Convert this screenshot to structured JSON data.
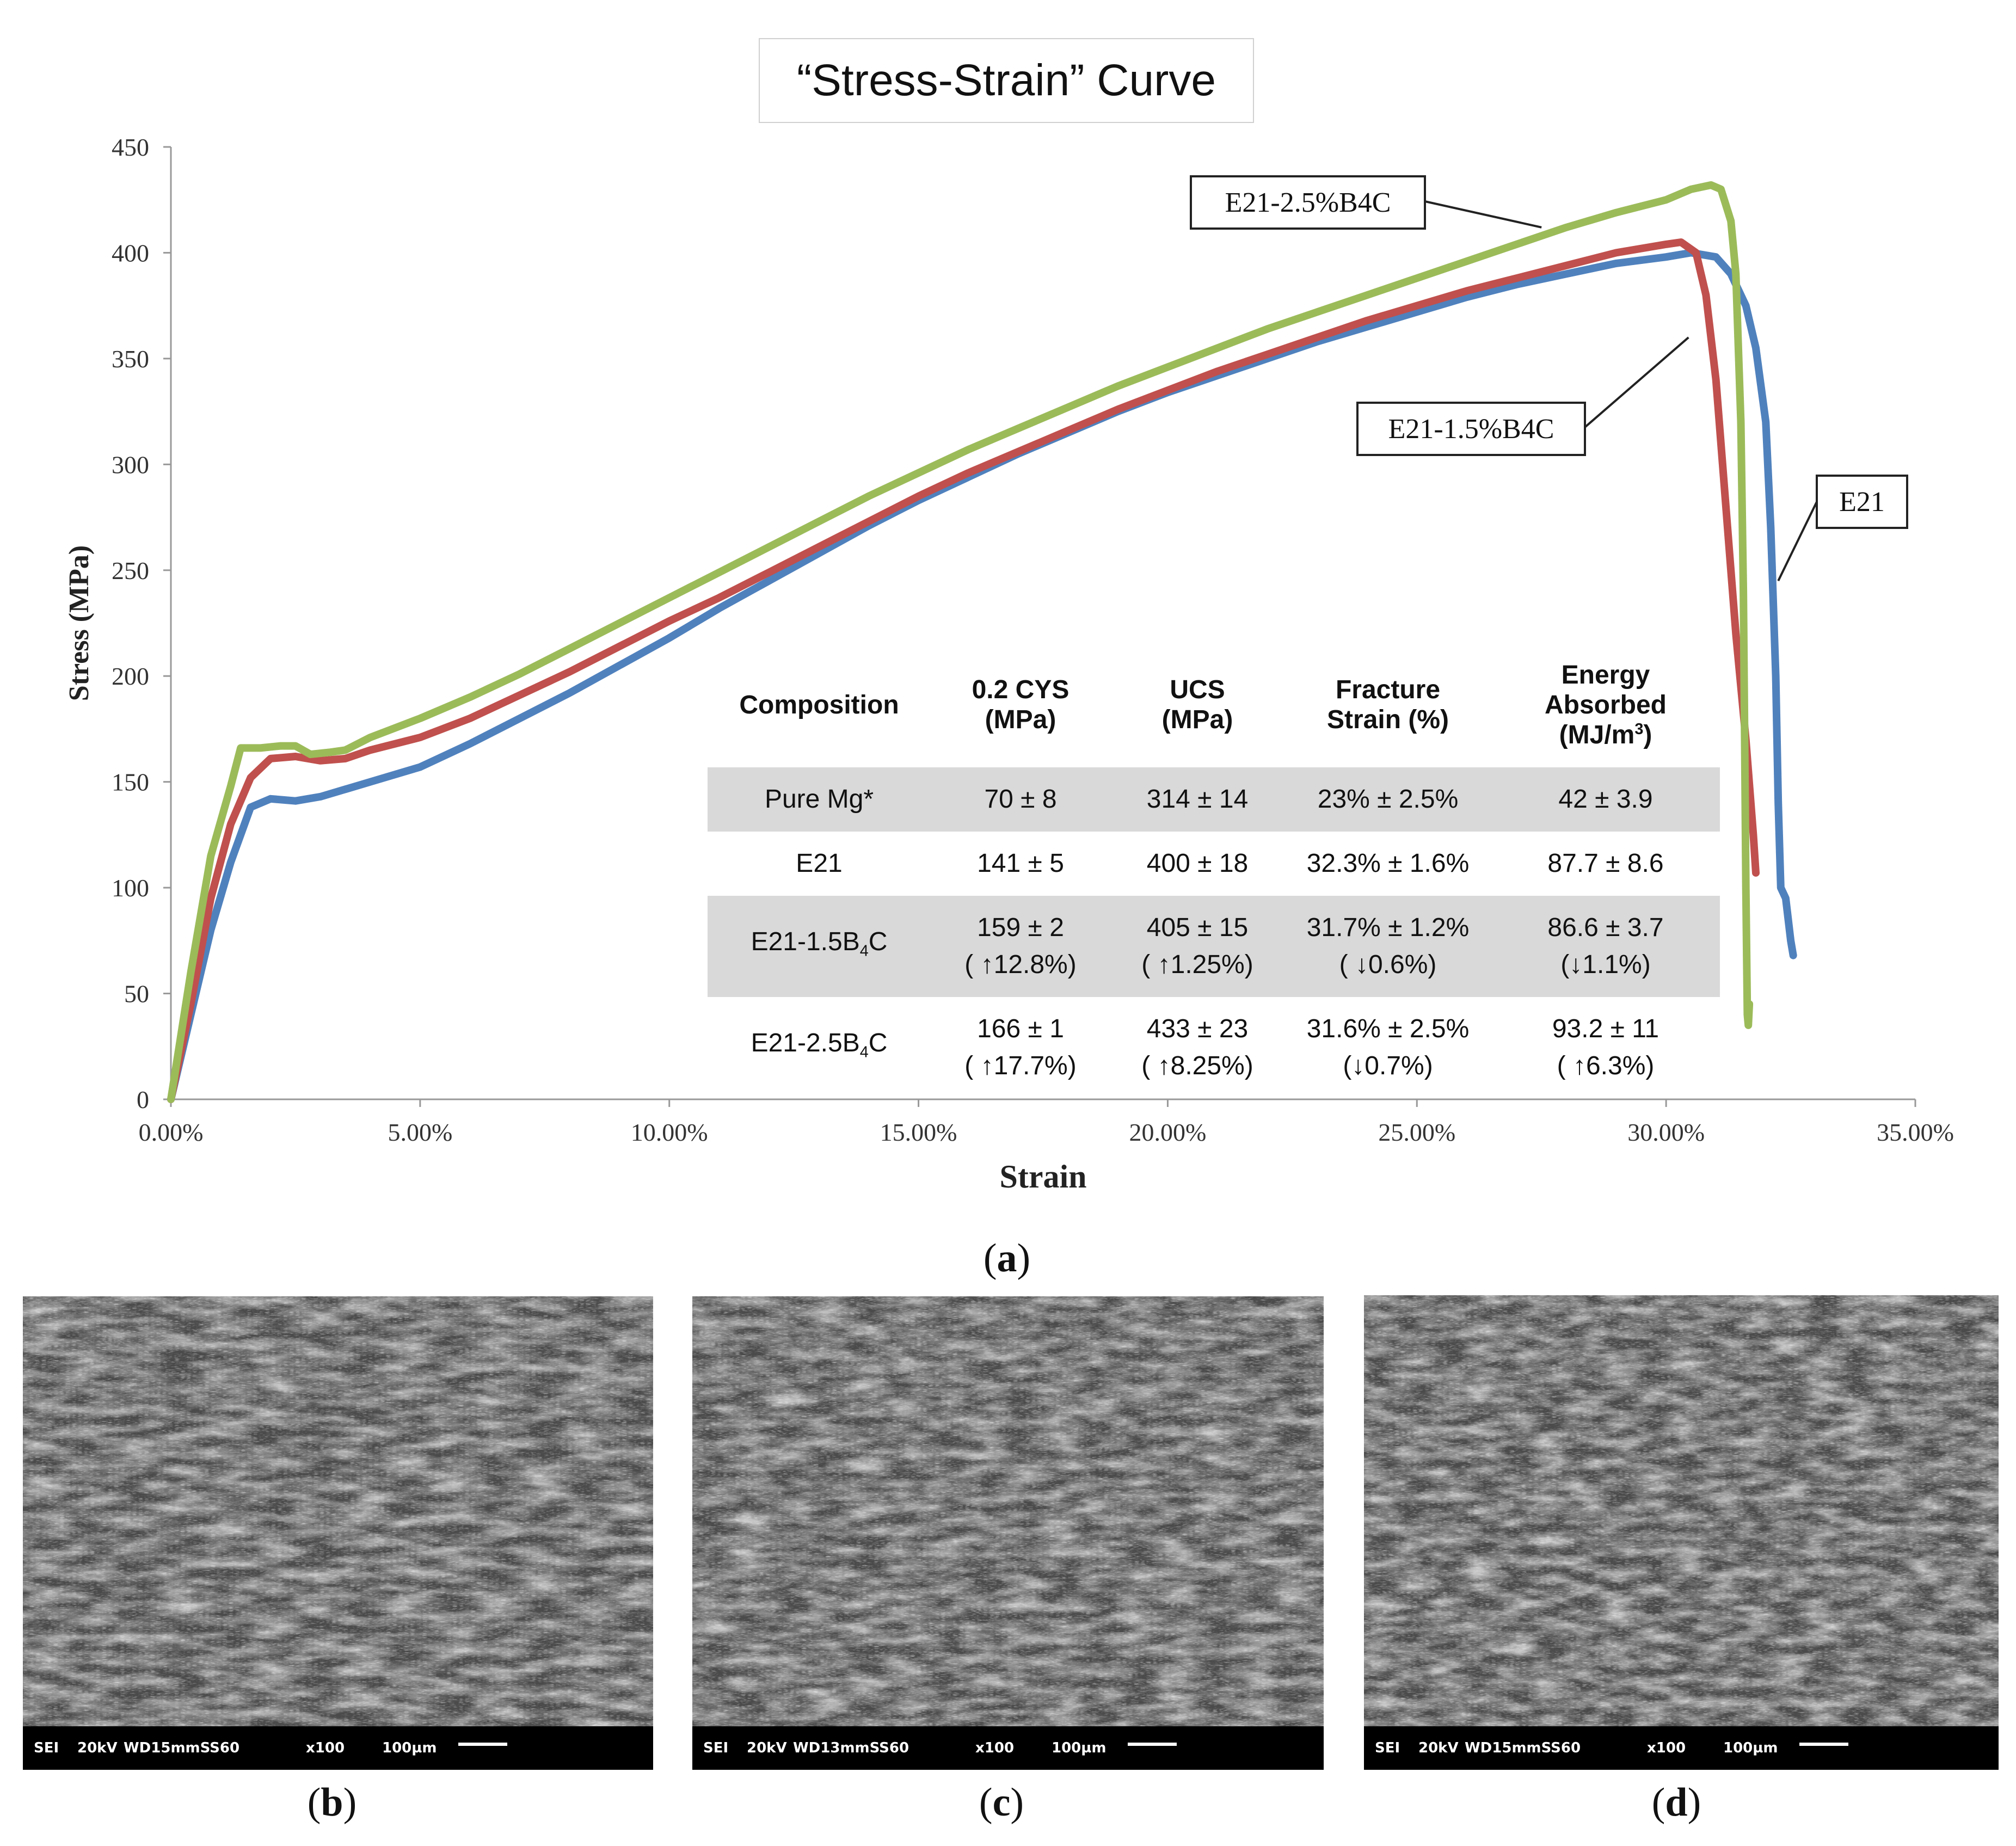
{
  "title": "“Stress-Strain” Curve",
  "chart_data": {
    "type": "line",
    "title": "“Stress-Strain” Curve",
    "xlabel": "Strain",
    "ylabel": "Stress (MPa)",
    "xlim": [
      0,
      0.35
    ],
    "ylim": [
      0,
      450
    ],
    "x_ticks": [
      "0.00%",
      "5.00%",
      "10.00%",
      "15.00%",
      "20.00%",
      "25.00%",
      "30.00%",
      "35.00%"
    ],
    "y_ticks": [
      "0",
      "50",
      "100",
      "150",
      "200",
      "250",
      "300",
      "350",
      "400",
      "450"
    ],
    "grid": false,
    "legend": "callout labels",
    "series": [
      {
        "name": "E21",
        "color": "#4f81bd",
        "points": [
          [
            0,
            0
          ],
          [
            0.004,
            40
          ],
          [
            0.008,
            80
          ],
          [
            0.012,
            112
          ],
          [
            0.016,
            138
          ],
          [
            0.02,
            142
          ],
          [
            0.025,
            141
          ],
          [
            0.03,
            143
          ],
          [
            0.04,
            150
          ],
          [
            0.05,
            157
          ],
          [
            0.06,
            168
          ],
          [
            0.07,
            180
          ],
          [
            0.08,
            192
          ],
          [
            0.09,
            205
          ],
          [
            0.1,
            218
          ],
          [
            0.11,
            232
          ],
          [
            0.12,
            245
          ],
          [
            0.13,
            258
          ],
          [
            0.14,
            271
          ],
          [
            0.15,
            283
          ],
          [
            0.16,
            294
          ],
          [
            0.17,
            305
          ],
          [
            0.18,
            315
          ],
          [
            0.19,
            325
          ],
          [
            0.2,
            334
          ],
          [
            0.21,
            342
          ],
          [
            0.22,
            350
          ],
          [
            0.23,
            358
          ],
          [
            0.24,
            365
          ],
          [
            0.25,
            372
          ],
          [
            0.26,
            379
          ],
          [
            0.27,
            385
          ],
          [
            0.28,
            390
          ],
          [
            0.29,
            395
          ],
          [
            0.3,
            398
          ],
          [
            0.305,
            400
          ],
          [
            0.31,
            398
          ],
          [
            0.313,
            390
          ],
          [
            0.316,
            375
          ],
          [
            0.318,
            355
          ],
          [
            0.32,
            320
          ],
          [
            0.321,
            270
          ],
          [
            0.322,
            200
          ],
          [
            0.3225,
            140
          ],
          [
            0.323,
            100
          ],
          [
            0.324,
            95
          ],
          [
            0.3245,
            85
          ],
          [
            0.325,
            75
          ],
          [
            0.3255,
            68
          ]
        ]
      },
      {
        "name": "E21-1.5%B4C",
        "color": "#c0504d",
        "points": [
          [
            0,
            0
          ],
          [
            0.004,
            45
          ],
          [
            0.008,
            95
          ],
          [
            0.012,
            130
          ],
          [
            0.016,
            152
          ],
          [
            0.02,
            161
          ],
          [
            0.025,
            162
          ],
          [
            0.03,
            160
          ],
          [
            0.035,
            161
          ],
          [
            0.04,
            165
          ],
          [
            0.05,
            171
          ],
          [
            0.06,
            180
          ],
          [
            0.07,
            191
          ],
          [
            0.08,
            202
          ],
          [
            0.09,
            214
          ],
          [
            0.1,
            226
          ],
          [
            0.11,
            237
          ],
          [
            0.12,
            249
          ],
          [
            0.13,
            261
          ],
          [
            0.14,
            273
          ],
          [
            0.15,
            285
          ],
          [
            0.16,
            296
          ],
          [
            0.17,
            306
          ],
          [
            0.18,
            316
          ],
          [
            0.19,
            326
          ],
          [
            0.2,
            335
          ],
          [
            0.21,
            344
          ],
          [
            0.22,
            352
          ],
          [
            0.23,
            360
          ],
          [
            0.24,
            368
          ],
          [
            0.25,
            375
          ],
          [
            0.26,
            382
          ],
          [
            0.27,
            388
          ],
          [
            0.28,
            394
          ],
          [
            0.29,
            400
          ],
          [
            0.3,
            404
          ],
          [
            0.303,
            405
          ],
          [
            0.306,
            400
          ],
          [
            0.308,
            380
          ],
          [
            0.31,
            340
          ],
          [
            0.312,
            280
          ],
          [
            0.314,
            220
          ],
          [
            0.316,
            170
          ],
          [
            0.3175,
            125
          ],
          [
            0.318,
            107
          ]
        ]
      },
      {
        "name": "E21-2.5%B4C",
        "color": "#9bbb59",
        "points": [
          [
            0,
            0
          ],
          [
            0.004,
            60
          ],
          [
            0.008,
            115
          ],
          [
            0.012,
            148
          ],
          [
            0.014,
            166
          ],
          [
            0.018,
            166
          ],
          [
            0.022,
            167
          ],
          [
            0.025,
            167
          ],
          [
            0.028,
            163
          ],
          [
            0.032,
            164
          ],
          [
            0.035,
            165
          ],
          [
            0.04,
            171
          ],
          [
            0.05,
            180
          ],
          [
            0.06,
            190
          ],
          [
            0.07,
            201
          ],
          [
            0.08,
            213
          ],
          [
            0.09,
            225
          ],
          [
            0.1,
            237
          ],
          [
            0.11,
            249
          ],
          [
            0.12,
            261
          ],
          [
            0.13,
            273
          ],
          [
            0.14,
            285
          ],
          [
            0.15,
            296
          ],
          [
            0.16,
            307
          ],
          [
            0.17,
            317
          ],
          [
            0.18,
            327
          ],
          [
            0.19,
            337
          ],
          [
            0.2,
            346
          ],
          [
            0.21,
            355
          ],
          [
            0.22,
            364
          ],
          [
            0.23,
            372
          ],
          [
            0.24,
            380
          ],
          [
            0.25,
            388
          ],
          [
            0.26,
            396
          ],
          [
            0.27,
            404
          ],
          [
            0.28,
            412
          ],
          [
            0.29,
            419
          ],
          [
            0.3,
            425
          ],
          [
            0.305,
            430
          ],
          [
            0.309,
            432
          ],
          [
            0.311,
            430
          ],
          [
            0.313,
            415
          ],
          [
            0.314,
            390
          ],
          [
            0.315,
            320
          ],
          [
            0.3155,
            240
          ],
          [
            0.3158,
            160
          ],
          [
            0.316,
            100
          ],
          [
            0.3162,
            60
          ],
          [
            0.3163,
            40
          ],
          [
            0.3165,
            35
          ],
          [
            0.3167,
            45
          ]
        ]
      }
    ],
    "annotations": [
      "E21-2.5%B4C",
      "E21-1.5%B4C",
      "E21"
    ]
  },
  "table": {
    "headers": [
      [
        "Composition"
      ],
      [
        "0.2 CYS",
        "(MPa)"
      ],
      [
        "UCS",
        "(MPa)"
      ],
      [
        "Fracture",
        "Strain (%)"
      ],
      [
        "Energy",
        "Absorbed",
        "(MJ/m",
        "3",
        ")"
      ]
    ],
    "rows": [
      {
        "comp": "Pure Mg*",
        "comp_sub": "",
        "comp_tail": "",
        "cys": [
          "70 ± 8"
        ],
        "ucs": [
          "314 ± 14"
        ],
        "fs": [
          "23% ± 2.5%"
        ],
        "ea": [
          "42 ± 3.9"
        ],
        "shaded": true
      },
      {
        "comp": "E21",
        "comp_sub": "",
        "comp_tail": "",
        "cys": [
          "141 ± 5"
        ],
        "ucs": [
          "400 ± 18"
        ],
        "fs": [
          "32.3% ± 1.6%"
        ],
        "ea": [
          "87.7 ± 8.6"
        ],
        "shaded": false
      },
      {
        "comp": "E21-1.5B",
        "comp_sub": "4",
        "comp_tail": "C",
        "cys": [
          "159 ± 2",
          "( ↑12.8%)"
        ],
        "ucs": [
          "405 ± 15",
          "( ↑1.25%)"
        ],
        "fs": [
          "31.7% ± 1.2%",
          "( ↓0.6%)"
        ],
        "ea": [
          "86.6 ± 3.7",
          "(↓1.1%)"
        ],
        "shaded": true
      },
      {
        "comp": "E21-2.5B",
        "comp_sub": "4",
        "comp_tail": "C",
        "cys": [
          "166 ± 1",
          "( ↑17.7%)"
        ],
        "ucs": [
          "433 ± 23",
          "( ↑8.25%)"
        ],
        "fs": [
          "31.6% ± 2.5%",
          "(↓0.7%)"
        ],
        "ea": [
          "93.2 ± 11",
          "( ↑6.3%)"
        ],
        "shaded": false
      }
    ]
  },
  "panels": {
    "a": "a",
    "b": "b",
    "c": "c",
    "d": "d"
  },
  "sem": [
    {
      "mode": "SEI",
      "kv": "20kV",
      "wd": "WD15mmSS60",
      "mag": "x100",
      "scale": "100µm"
    },
    {
      "mode": "SEI",
      "kv": "20kV",
      "wd": "WD13mmSS60",
      "mag": "x100",
      "scale": "100µm"
    },
    {
      "mode": "SEI",
      "kv": "20kV",
      "wd": "WD15mmSS60",
      "mag": "x100",
      "scale": "100µm"
    }
  ]
}
